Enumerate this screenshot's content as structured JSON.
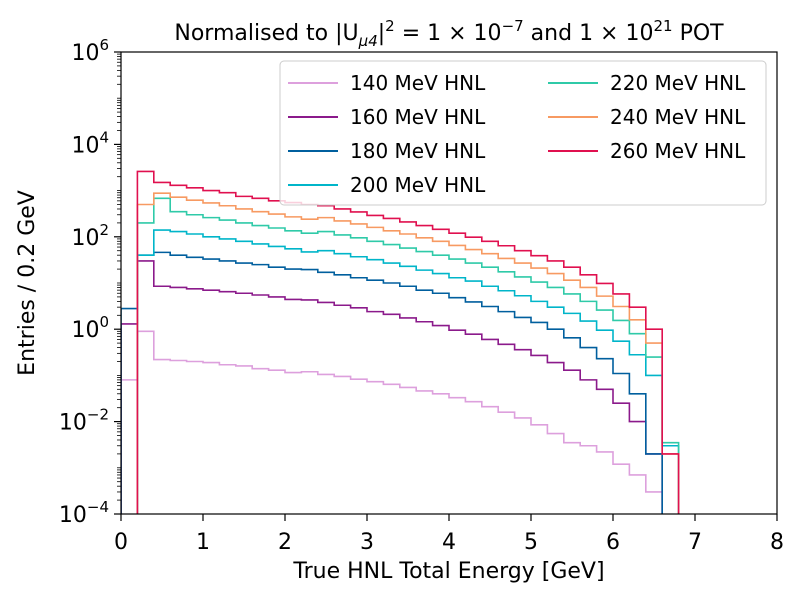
{
  "chart_data": {
    "type": "step",
    "title": {
      "prefix": "Normalised to |U",
      "sub": "μ4",
      "mid1": "|",
      "sup1": "2",
      "mid2": " = 1 × 10",
      "sup2": "−7",
      "mid3": " and 1 × 10",
      "sup3": "21",
      "suffix": " POT"
    },
    "xlabel": "True HNL Total Energy [GeV]",
    "ylabel": "Entries / 0.2 GeV",
    "xlim": [
      0,
      8
    ],
    "ylim_exponent": [
      -4,
      6
    ],
    "yscale": "log",
    "bin_width": 0.2,
    "x_ticks": [
      "0",
      "1",
      "2",
      "3",
      "4",
      "5",
      "6",
      "7",
      "8"
    ],
    "y_tick_exponents": [
      -4,
      -2,
      0,
      2,
      4,
      6
    ],
    "y_tick_base": "10",
    "legend_position": "top-right",
    "legend_columns": 2,
    "series": [
      {
        "name": "140 MeV HNL",
        "color": "#dda0dd",
        "x_start": 0.0,
        "values": [
          0.08,
          0.9,
          0.22,
          0.21,
          0.2,
          0.19,
          0.17,
          0.16,
          0.14,
          0.13,
          0.115,
          0.12,
          0.105,
          0.095,
          0.083,
          0.073,
          0.064,
          0.055,
          0.046,
          0.04,
          0.033,
          0.027,
          0.021,
          0.016,
          0.012,
          0.0085,
          0.0055,
          0.0035,
          0.003,
          0.0022,
          0.0012,
          0.0007,
          0.0003
        ]
      },
      {
        "name": "160 MeV HNL",
        "color": "#8b1a8b",
        "x_start": 0.0,
        "values": [
          1.3,
          30,
          8.5,
          8,
          7.5,
          7,
          6.5,
          6,
          5.5,
          5,
          4.4,
          4.3,
          3.8,
          3.3,
          2.9,
          2.4,
          2.1,
          1.75,
          1.45,
          1.2,
          0.95,
          0.78,
          0.6,
          0.47,
          0.36,
          0.27,
          0.19,
          0.13,
          0.08,
          0.05,
          0.025,
          0.01,
          0.002
        ]
      },
      {
        "name": "180 MeV HNL",
        "color": "#005f9e",
        "x_start": 0.0,
        "values": [
          2.8,
          40,
          46,
          40,
          36,
          33,
          30,
          27,
          25,
          22,
          20,
          19.5,
          17,
          15,
          13,
          11.5,
          10,
          8.5,
          7,
          6,
          4.8,
          3.9,
          3.1,
          2.4,
          1.8,
          1.4,
          1.0,
          0.65,
          0.4,
          0.23,
          0.11,
          0.04,
          0.002
        ]
      },
      {
        "name": "200 MeV HNL",
        "color": "#00b5c9",
        "x_start": 0.2,
        "values": [
          40,
          140,
          130,
          115,
          100,
          90,
          80,
          70,
          62,
          55,
          47,
          50,
          43,
          37,
          32,
          27,
          23,
          19,
          16,
          13,
          11,
          8.5,
          6.8,
          5.3,
          4.0,
          3.0,
          2.2,
          1.5,
          0.95,
          0.55,
          0.28,
          0.1,
          0.003
        ]
      },
      {
        "name": "220 MeV HNL",
        "color": "#2fcaa8",
        "x_start": 0.2,
        "values": [
          200,
          680,
          350,
          300,
          260,
          230,
          200,
          175,
          155,
          135,
          120,
          130,
          110,
          95,
          80,
          68,
          57,
          48,
          40,
          33,
          27,
          22,
          17.5,
          13.5,
          10.5,
          8,
          5.8,
          4,
          2.6,
          1.55,
          0.8,
          0.25,
          0.0035
        ]
      },
      {
        "name": "240 MeV HNL",
        "color": "#f79a62",
        "x_start": 0.2,
        "values": [
          500,
          880,
          720,
          620,
          540,
          470,
          400,
          350,
          310,
          270,
          240,
          260,
          220,
          190,
          160,
          135,
          115,
          95,
          80,
          65,
          53,
          43,
          34,
          27,
          21,
          16,
          11.5,
          8,
          5.2,
          3.1,
          1.6,
          0.5,
          0.002
        ]
      },
      {
        "name": "260 MeV HNL",
        "color": "#e0104f",
        "x_start": 0.2,
        "values": [
          2600,
          1500,
          1300,
          1150,
          1000,
          900,
          750,
          680,
          600,
          550,
          500,
          470,
          400,
          345,
          290,
          250,
          210,
          175,
          145,
          120,
          98,
          80,
          64,
          50,
          39,
          30,
          22,
          15,
          9.8,
          5.8,
          3.0,
          1.0,
          0.002
        ]
      }
    ]
  }
}
